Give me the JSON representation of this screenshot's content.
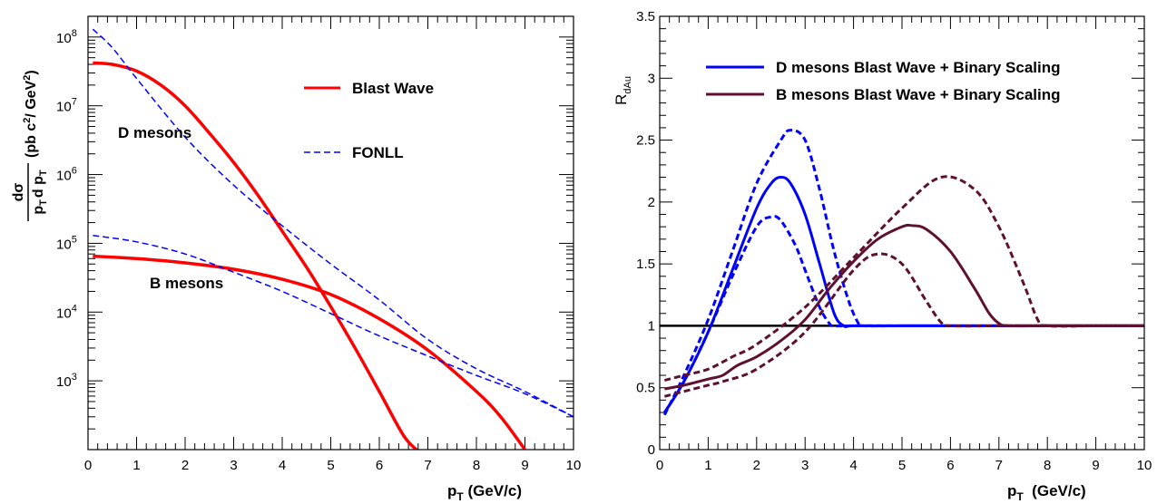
{
  "colors": {
    "blast_wave": "#ff0000",
    "fonll": "#0000ff",
    "d_meson_rdau": "#0000ff",
    "b_meson_rdau": "#5e1030",
    "unity_line": "#000000"
  },
  "chart_data": [
    {
      "type": "line",
      "yscale": "log",
      "xlim": [
        0,
        10
      ],
      "ylim": [
        100,
        200000000
      ],
      "x_ticks": [
        "0",
        "1",
        "2",
        "3",
        "4",
        "5",
        "6",
        "7",
        "8",
        "9",
        "10"
      ],
      "xlabel": {
        "main": "p",
        "sub": "T",
        "rest": " (GeV/c)"
      },
      "ylabel": {
        "frac_num": "dσ",
        "frac_den_p": "p",
        "frac_den_sub": "T",
        "frac_den_dp": "d p",
        "frac_den_sub2": "T",
        "units_a": "(pb c",
        "units_sup": "2",
        "units_b": "/ GeV",
        "units_sup2": "2",
        "units_c": ")"
      },
      "y_ticks": [
        {
          "base": "10",
          "exp": "3",
          "value": 1000
        },
        {
          "base": "10",
          "exp": "4",
          "value": 10000
        },
        {
          "base": "10",
          "exp": "5",
          "value": 100000
        },
        {
          "base": "10",
          "exp": "6",
          "value": 1000000
        },
        {
          "base": "10",
          "exp": "7",
          "value": 10000000
        },
        {
          "base": "10",
          "exp": "8",
          "value": 100000000
        }
      ],
      "legend": [
        {
          "label": "Blast Wave",
          "style": "solid",
          "color_key": "blast_wave"
        },
        {
          "label": "FONLL",
          "style": "dashed",
          "color_key": "fonll"
        }
      ],
      "annotations": [
        "D mesons",
        "B mesons"
      ],
      "series": [
        {
          "name": "Blast Wave",
          "color_key": "blast_wave",
          "style": "solid",
          "x": [
            0.1,
            0.5,
            1,
            1.5,
            2,
            2.5,
            3,
            3.5,
            4,
            4.5,
            5,
            5.5,
            6,
            6.5,
            6.8
          ],
          "y": [
            42000000,
            40000000,
            32000000,
            20000000,
            10000000,
            4000000,
            1500000,
            500000,
            150000,
            45000,
            12000,
            3000,
            700,
            160,
            95
          ]
        },
        {
          "name": "FONLL",
          "color_key": "fonll",
          "style": "dashed",
          "x": [
            0.1,
            0.5,
            1,
            2,
            3,
            4,
            5,
            6,
            7,
            8,
            9,
            10
          ],
          "y": [
            130000000,
            70000000,
            25000000,
            3500000,
            700000,
            180000,
            50000,
            15000,
            4000,
            1500,
            700,
            300
          ]
        },
        {
          "name": "Blast Wave",
          "color_key": "blast_wave",
          "style": "solid",
          "x": [
            0.1,
            1,
            2,
            3,
            4,
            5,
            6,
            7,
            8,
            8.5,
            9
          ],
          "y": [
            65000,
            60000,
            52000,
            42000,
            30000,
            18000,
            8000,
            2800,
            700,
            300,
            100
          ]
        },
        {
          "name": "FONLL",
          "color_key": "fonll",
          "style": "dashed",
          "x": [
            0.1,
            1,
            2,
            3,
            4,
            5,
            6,
            7,
            8,
            9,
            10
          ],
          "y": [
            130000,
            105000,
            70000,
            38000,
            20000,
            9500,
            4500,
            2300,
            1200,
            650,
            300
          ]
        }
      ]
    },
    {
      "type": "line",
      "xlim": [
        0,
        10
      ],
      "ylim": [
        0,
        3.5
      ],
      "x_ticks": [
        "0",
        "1",
        "2",
        "3",
        "4",
        "5",
        "6",
        "7",
        "8",
        "9",
        "10"
      ],
      "y_ticks": [
        "0",
        "0.5",
        "1",
        "1.5",
        "2",
        "2.5",
        "3",
        "3.5"
      ],
      "xlabel": {
        "main": "p",
        "sub": "T",
        "rest": "  (GeV/c)"
      },
      "ylabel": {
        "main": "R",
        "sub": "dAu"
      },
      "legend": [
        {
          "label": "D mesons Blast Wave + Binary Scaling",
          "style": "solid",
          "color_key": "d_meson_rdau"
        },
        {
          "label": "B mesons Blast Wave + Binary Scaling",
          "style": "solid",
          "color_key": "b_meson_rdau"
        }
      ],
      "series": [
        {
          "color_key": "unity_line",
          "style": "solid",
          "x": [
            0,
            10
          ],
          "y": [
            1,
            1
          ]
        },
        {
          "color_key": "d_meson_rdau",
          "style": "solid",
          "x": [
            0.1,
            0.5,
            1,
            1.5,
            2,
            2.3,
            2.5,
            2.7,
            3,
            3.3,
            3.6,
            3.8,
            4,
            5,
            6,
            7,
            8,
            9,
            10
          ],
          "y": [
            0.3,
            0.55,
            0.95,
            1.45,
            1.95,
            2.15,
            2.2,
            2.15,
            1.9,
            1.5,
            1.1,
            1.0,
            1.0,
            1.0,
            1.0,
            1.0,
            1.0,
            1.0,
            1.0
          ]
        },
        {
          "color_key": "d_meson_rdau",
          "style": "dashed",
          "x": [
            0.1,
            0.5,
            1,
            1.5,
            2,
            2.5,
            2.7,
            3,
            3.3,
            3.6,
            3.9,
            4.1,
            4.2,
            5,
            6,
            7,
            8,
            9,
            10
          ],
          "y": [
            0.28,
            0.6,
            1.05,
            1.6,
            2.15,
            2.5,
            2.58,
            2.5,
            2.1,
            1.6,
            1.2,
            1.02,
            1.0,
            1.0,
            1.0,
            1.0,
            1.0,
            1.0,
            1.0
          ]
        },
        {
          "color_key": "d_meson_rdau",
          "style": "dashed",
          "x": [
            0.1,
            0.5,
            1,
            1.5,
            2,
            2.3,
            2.5,
            2.8,
            3,
            3.3,
            3.5,
            3.6,
            4,
            5,
            6,
            7,
            8,
            9,
            10
          ],
          "y": [
            0.3,
            0.55,
            0.95,
            1.4,
            1.8,
            1.88,
            1.85,
            1.65,
            1.45,
            1.15,
            1.02,
            1.0,
            1.0,
            1.0,
            1.0,
            1.0,
            1.0,
            1.0,
            1.0
          ]
        },
        {
          "color_key": "b_meson_rdau",
          "style": "solid",
          "x": [
            0.1,
            0.5,
            1,
            1.3,
            1.6,
            2,
            2.5,
            3,
            3.5,
            4,
            4.5,
            5,
            5.2,
            5.5,
            6,
            6.5,
            6.8,
            7,
            7.2,
            8,
            9,
            10
          ],
          "y": [
            0.49,
            0.52,
            0.57,
            0.6,
            0.68,
            0.75,
            0.88,
            1.05,
            1.3,
            1.52,
            1.7,
            1.8,
            1.81,
            1.78,
            1.6,
            1.3,
            1.1,
            1.02,
            1.0,
            1.0,
            1.0,
            1.0
          ]
        },
        {
          "color_key": "b_meson_rdau",
          "style": "dashed",
          "x": [
            0.1,
            0.5,
            1,
            1.5,
            2,
            3,
            4,
            5,
            5.8,
            6.5,
            7,
            7.5,
            7.8,
            8,
            9,
            10
          ],
          "y": [
            0.56,
            0.6,
            0.65,
            0.75,
            0.85,
            1.15,
            1.55,
            1.95,
            2.2,
            2.1,
            1.8,
            1.35,
            1.05,
            1.0,
            1.0,
            1.0
          ]
        },
        {
          "color_key": "b_meson_rdau",
          "style": "dashed",
          "x": [
            0.1,
            0.5,
            1,
            1.3,
            2,
            3,
            4,
            4.5,
            5,
            5.5,
            5.8,
            6,
            7,
            8,
            9,
            10
          ],
          "y": [
            0.43,
            0.47,
            0.52,
            0.55,
            0.65,
            0.95,
            1.45,
            1.58,
            1.5,
            1.2,
            1.03,
            1.0,
            1.0,
            1.0,
            1.0,
            1.0
          ]
        }
      ]
    }
  ]
}
